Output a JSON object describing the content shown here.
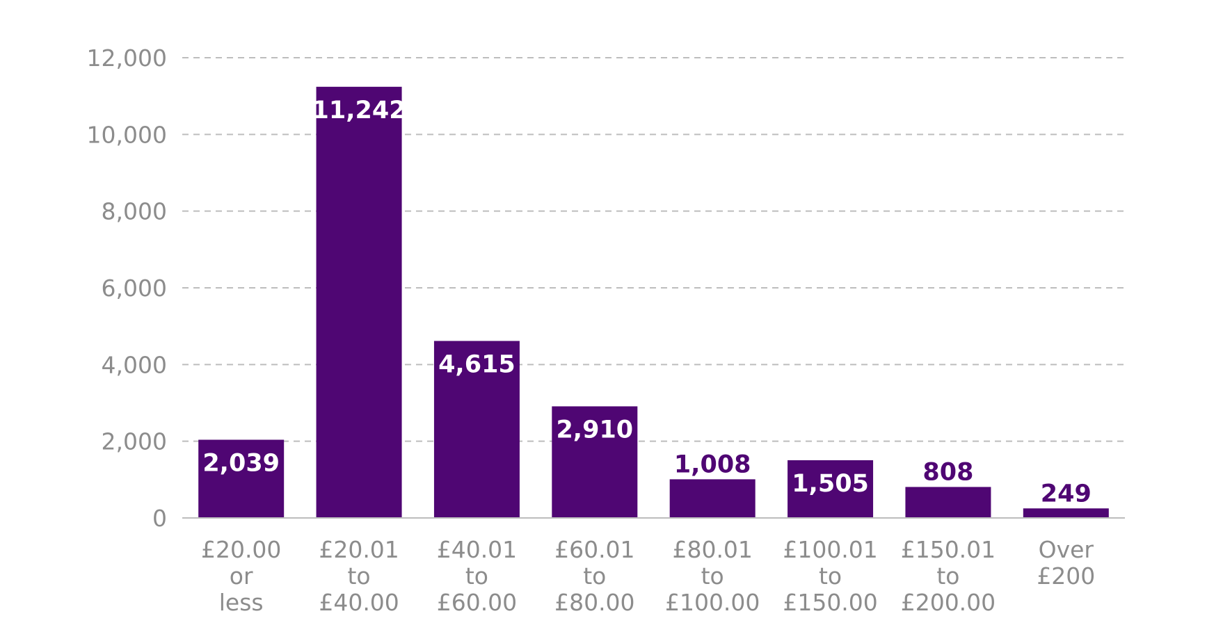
{
  "chart_data": {
    "type": "bar",
    "title": "",
    "xlabel": "",
    "ylabel": "",
    "ylim": [
      0,
      12000
    ],
    "yticks": [
      "0",
      "2,000",
      "4,000",
      "6,000",
      "8,000",
      "10,000",
      "12,000"
    ],
    "ytick_values": [
      0,
      2000,
      4000,
      6000,
      8000,
      10000,
      12000
    ],
    "grid": true,
    "categories": [
      [
        "£20.00",
        "or",
        "less"
      ],
      [
        "£20.01",
        "to",
        "£40.00"
      ],
      [
        "£40.01",
        "to",
        "£60.00"
      ],
      [
        "£60.01",
        "to",
        "£80.00"
      ],
      [
        "£80.01",
        "to",
        "£100.00"
      ],
      [
        "£100.01",
        "to",
        "£150.00"
      ],
      [
        "£150.01",
        "to",
        "£200.00"
      ],
      [
        "Over",
        "£200"
      ]
    ],
    "values": [
      2039,
      11242,
      4615,
      2910,
      1008,
      1505,
      808,
      249
    ],
    "data_labels": [
      "2,039",
      "11,242",
      "4,615",
      "2,910",
      "1,008",
      "1,505",
      "808",
      "249"
    ],
    "colors": {
      "bar": "#4f0673",
      "grid": "#bdbdbd",
      "axis": "#bdbdbd",
      "tick_text": "#8c8c8c",
      "label_inside": "#ffffff",
      "label_outside": "#4f0673"
    }
  }
}
